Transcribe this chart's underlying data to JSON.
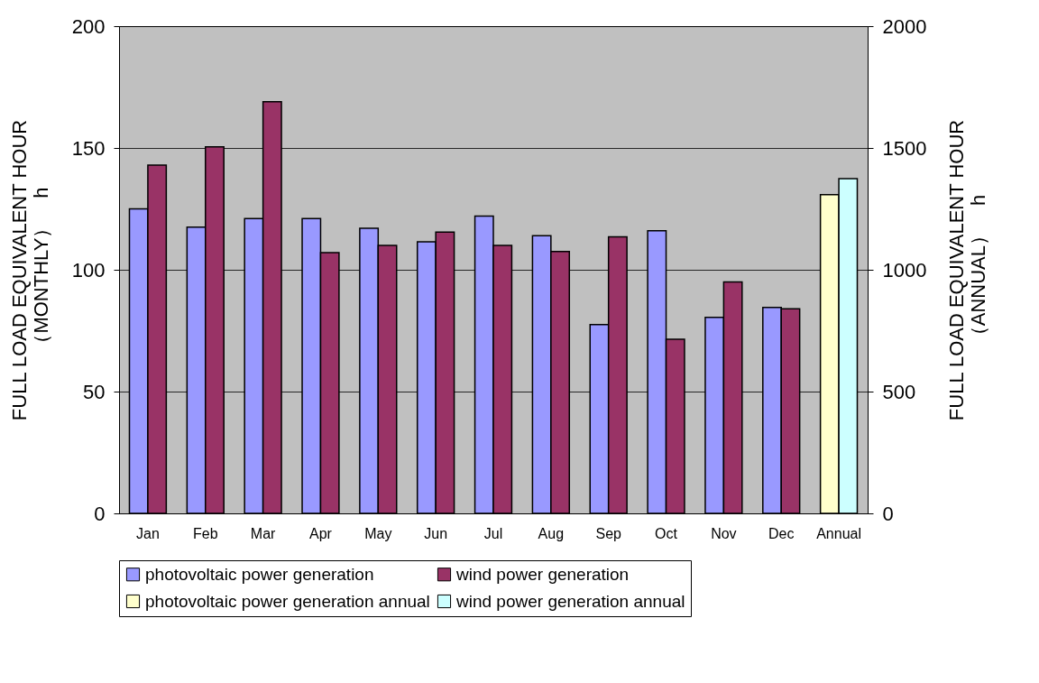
{
  "chart_data": {
    "type": "bar",
    "categories": [
      "Jan",
      "Feb",
      "Mar",
      "Apr",
      "May",
      "Jun",
      "Jul",
      "Aug",
      "Sep",
      "Oct",
      "Nov",
      "Dec",
      "Annual"
    ],
    "ylabel": "FULL LOAD EQUIVALENT HOUR\n（MONTHLY）　h",
    "y2label": "FULL LOAD EQUIVALENT HOUR\n（ANNUAL）　h",
    "ylim": [
      0,
      200
    ],
    "yticks": [
      0,
      50,
      100,
      150,
      200
    ],
    "y2lim": [
      0,
      2000
    ],
    "y2ticks": [
      0,
      500,
      1000,
      1500,
      2000
    ],
    "grid": "y",
    "legend": "bottom",
    "series": [
      {
        "name": "photovoltaic power generation",
        "color": "#9999ff",
        "values": [
          125,
          117.5,
          121,
          121,
          117,
          111.5,
          122,
          114,
          77.5,
          116,
          80.5,
          84.5,
          null
        ]
      },
      {
        "name": "wind power generation",
        "color": "#993366",
        "values": [
          143,
          150.5,
          169,
          107,
          110,
          115.5,
          110,
          107.5,
          113.5,
          71.5,
          95,
          84,
          null
        ]
      },
      {
        "name": "photovoltaic power generation annual",
        "color": "#ffffcc",
        "axis": "y2",
        "values": [
          null,
          null,
          null,
          null,
          null,
          null,
          null,
          null,
          null,
          null,
          null,
          null,
          1308
        ]
      },
      {
        "name": "wind power generation annual",
        "color": "#ccffff",
        "axis": "y2",
        "values": [
          null,
          null,
          null,
          null,
          null,
          null,
          null,
          null,
          null,
          null,
          null,
          null,
          1374
        ]
      }
    ]
  }
}
